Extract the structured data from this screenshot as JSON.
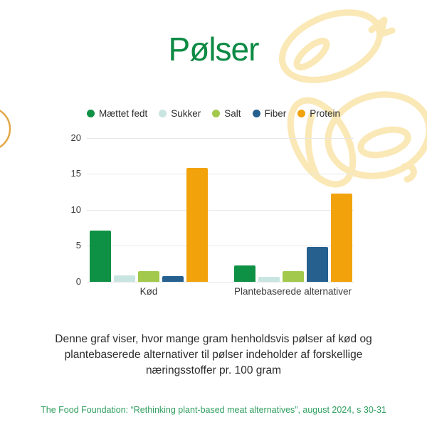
{
  "page": {
    "title": "Pølser",
    "caption": {
      "lines": [
        "Denne graf viser, hvor mange gram henholdsvis pølser af kød og",
        "plantebaserede alternativer til pølser indeholder af forskellige",
        "næringsstoffer pr. 100 gram"
      ]
    },
    "footer": "The Food Foundation: “Rethinking plant-based meat alternatives”, august 2024, s 30-31"
  },
  "colors": {
    "title_green": "#0D8A44",
    "footer_green": "#2F9E5F",
    "grid": "#E7E7E7",
    "axis_text": "#3D3D3D",
    "caption_text": "#2B2B2B",
    "doodle_yellow": "#FAE8B6",
    "left_arc_gold": "#E2A744"
  },
  "chart_data": {
    "type": "bar",
    "title": "Pølser",
    "categories": [
      "Kød",
      "Plantebaserede alternativer"
    ],
    "series": [
      {
        "name": "Mættet fedt",
        "color": "#0F9145",
        "values": [
          7.1,
          2.3
        ]
      },
      {
        "name": "Sukker",
        "color": "#C9E5E1",
        "values": [
          0.9,
          0.7
        ]
      },
      {
        "name": "Salt",
        "color": "#A2C94B",
        "values": [
          1.5,
          1.5
        ]
      },
      {
        "name": "Fiber",
        "color": "#25608F",
        "values": [
          0.8,
          4.8
        ]
      },
      {
        "name": "Protein",
        "color": "#F2A30C",
        "values": [
          15.8,
          12.2
        ]
      }
    ],
    "ylim": [
      0,
      20
    ],
    "yticks": [
      0,
      5,
      10,
      15,
      20
    ],
    "grid": true,
    "legend_position": "top"
  }
}
